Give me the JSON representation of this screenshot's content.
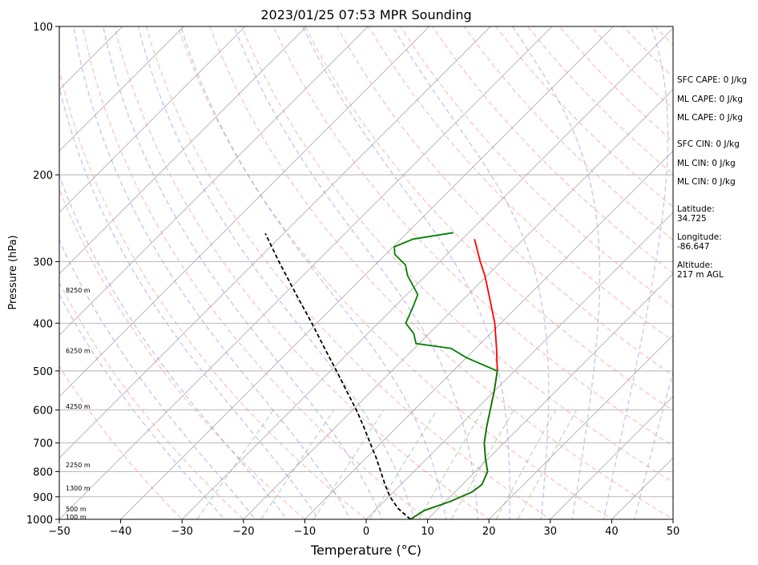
{
  "chart_data": {
    "type": "line",
    "title": "2023/01/25 07:53 MPR Sounding",
    "xlabel": "Temperature (°C)",
    "ylabel": "Pressure (hPa)",
    "xlim": [
      -50,
      50
    ],
    "ylim": [
      1000,
      100
    ],
    "y_scale": "log",
    "skew": true,
    "x_ticks": [
      -50,
      -40,
      -30,
      -20,
      -10,
      0,
      10,
      20,
      30,
      40,
      50
    ],
    "x_tick_labels": [
      "−50",
      "−40",
      "−30",
      "−20",
      "−10",
      "0",
      "10",
      "20",
      "30",
      "40",
      "50"
    ],
    "y_ticks": [
      1000,
      900,
      800,
      700,
      600,
      500,
      400,
      300,
      200,
      100
    ],
    "y_tick_labels": [
      "1000",
      "900",
      "800",
      "700",
      "600",
      "500",
      "400",
      "300",
      "200",
      "100"
    ],
    "grid": true,
    "series": [
      {
        "color": "#ff0000",
        "points": [
          {
            "p": 1000,
            "t": 7.2
          },
          {
            "p": 960,
            "t": 8.0
          },
          {
            "p": 920,
            "t": 10.8
          },
          {
            "p": 880,
            "t": 12.8
          },
          {
            "p": 850,
            "t": 13.2
          },
          {
            "p": 800,
            "t": 12.0
          },
          {
            "p": 750,
            "t": 9.4
          },
          {
            "p": 700,
            "t": 6.8
          },
          {
            "p": 650,
            "t": 4.6
          },
          {
            "p": 600,
            "t": 2.4
          },
          {
            "p": 550,
            "t": 0.0
          },
          {
            "p": 500,
            "t": -2.8
          },
          {
            "p": 450,
            "t": -6.6
          },
          {
            "p": 400,
            "t": -11.0
          },
          {
            "p": 350,
            "t": -16.6
          },
          {
            "p": 320,
            "t": -20.4
          },
          {
            "p": 300,
            "t": -23.4
          },
          {
            "p": 270,
            "t": -28.0
          }
        ]
      },
      {
        "color": "#008000",
        "points": [
          {
            "p": 1000,
            "t": 7.2
          },
          {
            "p": 960,
            "t": 8.0
          },
          {
            "p": 920,
            "t": 10.8
          },
          {
            "p": 880,
            "t": 12.8
          },
          {
            "p": 850,
            "t": 13.2
          },
          {
            "p": 800,
            "t": 12.0
          },
          {
            "p": 750,
            "t": 9.4
          },
          {
            "p": 700,
            "t": 6.8
          },
          {
            "p": 650,
            "t": 4.6
          },
          {
            "p": 600,
            "t": 2.4
          },
          {
            "p": 550,
            "t": 0.0
          },
          {
            "p": 500,
            "t": -2.8
          },
          {
            "p": 470,
            "t": -10.0
          },
          {
            "p": 450,
            "t": -14.0
          },
          {
            "p": 440,
            "t": -20.5
          },
          {
            "p": 420,
            "t": -22.5
          },
          {
            "p": 400,
            "t": -25.5
          },
          {
            "p": 370,
            "t": -27.0
          },
          {
            "p": 350,
            "t": -28.2
          },
          {
            "p": 320,
            "t": -33.0
          },
          {
            "p": 305,
            "t": -35.0
          },
          {
            "p": 290,
            "t": -38.5
          },
          {
            "p": 280,
            "t": -39.8
          },
          {
            "p": 270,
            "t": -38.0
          },
          {
            "p": 262,
            "t": -32.5
          }
        ]
      },
      {
        "color": "#000000",
        "dashed": true,
        "points": [
          {
            "p": 1000,
            "t": 7.2
          },
          {
            "p": 950,
            "t": 3.4
          },
          {
            "p": 900,
            "t": 0.2
          },
          {
            "p": 850,
            "t": -2.6
          },
          {
            "p": 800,
            "t": -5.4
          },
          {
            "p": 750,
            "t": -8.4
          },
          {
            "p": 700,
            "t": -11.8
          },
          {
            "p": 650,
            "t": -15.4
          },
          {
            "p": 600,
            "t": -19.4
          },
          {
            "p": 550,
            "t": -24.0
          },
          {
            "p": 500,
            "t": -29.0
          },
          {
            "p": 450,
            "t": -34.6
          },
          {
            "p": 400,
            "t": -40.8
          },
          {
            "p": 350,
            "t": -48.0
          },
          {
            "p": 300,
            "t": -56.2
          },
          {
            "p": 263,
            "t": -63.0
          }
        ]
      }
    ],
    "height_labels": [
      {
        "p": 988,
        "text": "100 m"
      },
      {
        "p": 953,
        "text": "500 m"
      },
      {
        "p": 864,
        "text": "1300 m"
      },
      {
        "p": 775,
        "text": "2250 m"
      },
      {
        "p": 590,
        "text": "4250 m"
      },
      {
        "p": 455,
        "text": "6250 m"
      },
      {
        "p": 343,
        "text": "8250 m"
      }
    ],
    "reference_lines": {
      "isotherm_color": "#b0b0b0",
      "dry_adiabat_color": "#ff8080",
      "moist_adiabat_color": "#8080ff",
      "mixing_ratio_color": "#80c080"
    }
  },
  "side_info": {
    "sfc_cape": "SFC CAPE: 0 J/kg",
    "ml_cape_1": "ML CAPE: 0 J/kg",
    "ml_cape_2": "ML CAPE: 0 J/kg",
    "sfc_cin": "SFC CIN: 0 J/kg",
    "ml_cin_1": "ML CIN: 0 J/kg",
    "ml_cin_2": "ML CIN: 0 J/kg",
    "latitude": "Latitude:\n34.725",
    "longitude": "Longitude:\n-86.647",
    "altitude": "Altitude:\n217 m AGL"
  }
}
